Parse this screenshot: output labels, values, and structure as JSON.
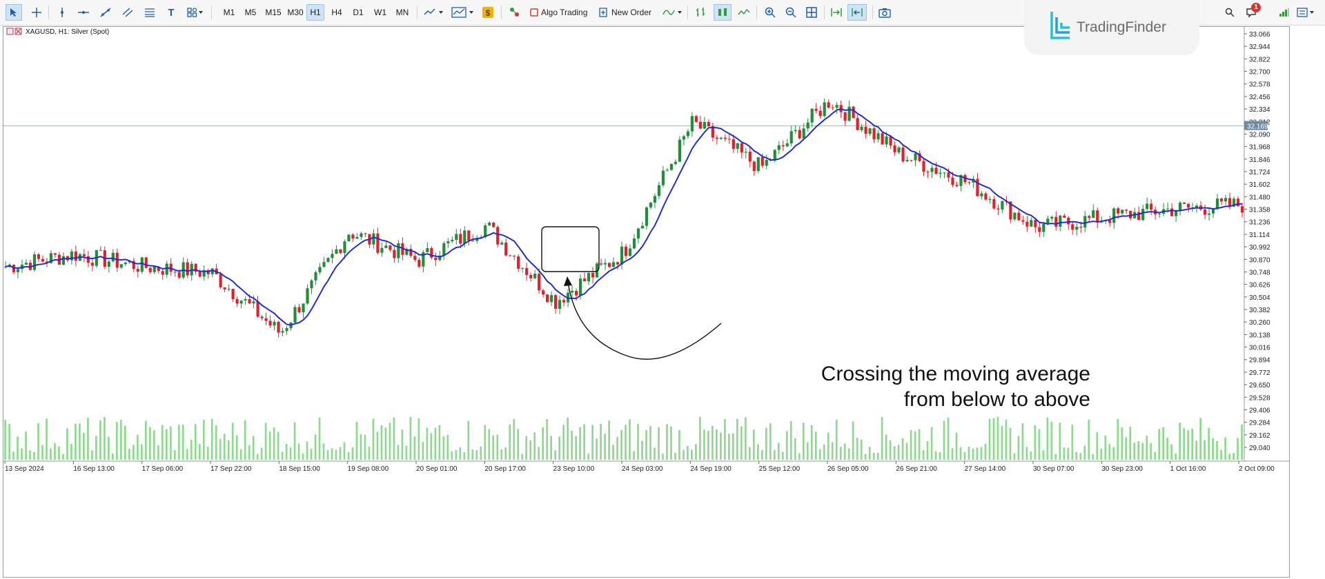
{
  "toolbar": {
    "timeframes": [
      "M1",
      "M5",
      "M15",
      "M30",
      "H1",
      "H4",
      "D1",
      "W1",
      "MN"
    ],
    "active_timeframe": "H1",
    "algo_trading_label": "Algo Trading",
    "new_order_label": "New Order",
    "notification_count": "1"
  },
  "watermark": {
    "brand": "TradingFinder"
  },
  "chart": {
    "symbol_label": "XAGUSD, H1:  Silver (Spot)",
    "current_price": "32.169",
    "price_line_color": "#9fb5b0",
    "bull_color": "#1f8f3a",
    "bear_color": "#e0202a",
    "ma_color": "#1f2fc8",
    "volume_color": "#8fd88f",
    "x_labels": [
      "13 Sep 2024",
      "16 Sep 13:00",
      "17 Sep 06:00",
      "17 Sep 22:00",
      "18 Sep 15:00",
      "19 Sep 08:00",
      "20 Sep 01:00",
      "20 Sep 17:00",
      "23 Sep 10:00",
      "24 Sep 03:00",
      "24 Sep 19:00",
      "25 Sep 12:00",
      "26 Sep 05:00",
      "26 Sep 21:00",
      "27 Sep 14:00",
      "30 Sep 07:00",
      "30 Sep 23:00",
      "1 Oct 16:00",
      "2 Oct 09:00"
    ],
    "y_labels": [
      "33.066",
      "32.944",
      "32.822",
      "32.700",
      "32.578",
      "32.456",
      "32.334",
      "32.212",
      "32.090",
      "31.968",
      "31.846",
      "31.724",
      "31.602",
      "31.480",
      "31.358",
      "31.236",
      "31.114",
      "30.992",
      "30.870",
      "30.748",
      "30.626",
      "30.504",
      "30.382",
      "30.260",
      "30.138",
      "30.016",
      "29.894",
      "29.772",
      "29.650",
      "29.528",
      "29.406",
      "29.284",
      "29.162",
      "29.040"
    ]
  },
  "chart_data": {
    "type": "candlestick",
    "symbol": "XAGUSD",
    "timeframe": "H1",
    "ylim": [
      29.0,
      33.1
    ],
    "anchors": [
      {
        "x": "13 Sep 2024",
        "close": 30.8
      },
      {
        "x": "16 Sep 13:00",
        "close": 30.92
      },
      {
        "x": "17 Sep 06:00",
        "close": 30.8
      },
      {
        "x": "17 Sep 22:00",
        "close": 30.74
      },
      {
        "x": "18 Sep 15:00",
        "close": 30.15
      },
      {
        "x": "19 Sep 08:00",
        "close": 31.14
      },
      {
        "x": "20 Sep 01:00",
        "close": 30.86
      },
      {
        "x": "20 Sep 17:00",
        "close": 31.2
      },
      {
        "x": "23 Sep 10:00",
        "close": 30.46
      },
      {
        "x": "24 Sep 03:00",
        "close": 30.94
      },
      {
        "x": "24 Sep 19:00",
        "close": 32.2
      },
      {
        "x": "25 Sep 12:00",
        "close": 31.76
      },
      {
        "x": "26 Sep 05:00",
        "close": 32.42
      },
      {
        "x": "26 Sep 21:00",
        "close": 31.9
      },
      {
        "x": "27 Sep 14:00",
        "close": 31.62
      },
      {
        "x": "30 Sep 07:00",
        "close": 31.18
      },
      {
        "x": "30 Sep 23:00",
        "close": 31.28
      },
      {
        "x": "1 Oct 16:00",
        "close": 31.36
      },
      {
        "x": "2 Oct 09:00",
        "close": 31.4
      }
    ],
    "annotation": [
      "Crossing the moving average",
      "from below to above"
    ]
  }
}
